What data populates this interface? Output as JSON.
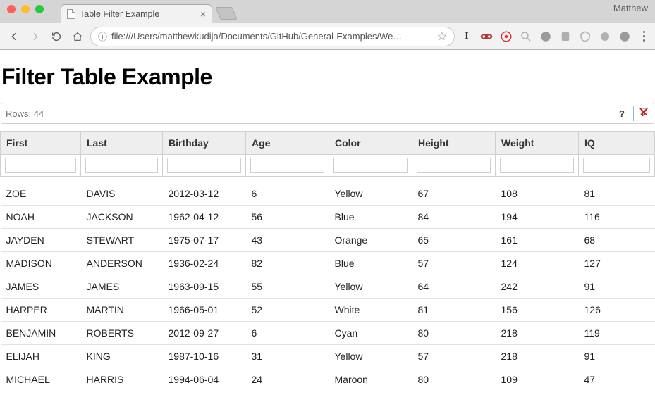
{
  "browser": {
    "traffic_light_colors": [
      "#ff5f57",
      "#febc2e",
      "#28c840"
    ],
    "tab_title": "Table Filter Example",
    "profile_name": "Matthew",
    "address": "file:///Users/matthewkudija/Documents/GitHub/General-Examples/We…",
    "address_prefix_icon": "ⓘ"
  },
  "page": {
    "heading": "Filter Table Example"
  },
  "toolbar": {
    "rows_label": "Rows: 44",
    "help_label": "?",
    "clear_filter_icon": "✕",
    "clear_filter_color": "#c1272d"
  },
  "table": {
    "columns": [
      {
        "key": "first",
        "label": "First"
      },
      {
        "key": "last",
        "label": "Last"
      },
      {
        "key": "birthday",
        "label": "Birthday"
      },
      {
        "key": "age",
        "label": "Age"
      },
      {
        "key": "color",
        "label": "Color"
      },
      {
        "key": "height",
        "label": "Height"
      },
      {
        "key": "weight",
        "label": "Weight"
      },
      {
        "key": "iq",
        "label": "IQ"
      }
    ],
    "header_bg": "#eeeeee",
    "border_color": "#d0d0d0",
    "row_border_color": "#e3e3e3",
    "font_size": 14,
    "rows": [
      [
        "ZOE",
        "DAVIS",
        "2012-03-12",
        "6",
        "Yellow",
        "67",
        "108",
        "81"
      ],
      [
        "NOAH",
        "JACKSON",
        "1962-04-12",
        "56",
        "Blue",
        "84",
        "194",
        "116"
      ],
      [
        "JAYDEN",
        "STEWART",
        "1975-07-17",
        "43",
        "Orange",
        "65",
        "161",
        "68"
      ],
      [
        "MADISON",
        "ANDERSON",
        "1936-02-24",
        "82",
        "Blue",
        "57",
        "124",
        "127"
      ],
      [
        "JAMES",
        "JAMES",
        "1963-09-15",
        "55",
        "Yellow",
        "64",
        "242",
        "91"
      ],
      [
        "HARPER",
        "MARTIN",
        "1966-05-01",
        "52",
        "White",
        "81",
        "156",
        "126"
      ],
      [
        "BENJAMIN",
        "ROBERTS",
        "2012-09-27",
        "6",
        "Cyan",
        "80",
        "218",
        "119"
      ],
      [
        "ELIJAH",
        "KING",
        "1987-10-16",
        "31",
        "Yellow",
        "57",
        "218",
        "91"
      ],
      [
        "MICHAEL",
        "HARRIS",
        "1994-06-04",
        "24",
        "Maroon",
        "80",
        "109",
        "47"
      ]
    ]
  }
}
